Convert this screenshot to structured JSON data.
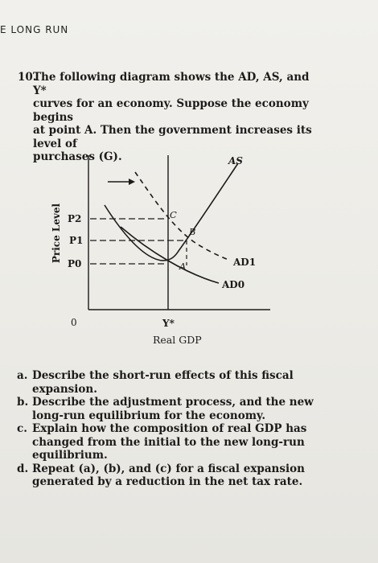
{
  "header": {
    "title": "E LONG RUN"
  },
  "question": {
    "number": "10.",
    "text_plain": "The following diagram shows the AD, AS, and Y* curves for an economy. Suppose the economy begins at point A. Then the government increases its level of purchases (G).",
    "line1": "The following diagram shows the AD, AS, and Y*",
    "line2": "curves for an economy. Suppose the economy begins",
    "line3": "at point A. Then the government increases its level of",
    "line4": "purchases (G)."
  },
  "diagram": {
    "y_axis_label": "Price Level",
    "x_axis_label": "Real GDP",
    "origin_label": "0",
    "y_star_label": "Y*",
    "price_labels": [
      "P2",
      "P1",
      "P0"
    ],
    "curve_labels": {
      "as": "AS",
      "ad1": "AD1",
      "ad0": "AD0"
    },
    "point_labels": {
      "a": "A",
      "b": "B",
      "c": "C"
    }
  },
  "parts": [
    {
      "label": "a.",
      "text": "Describe the short-run effects of this fiscal expansion."
    },
    {
      "label": "b.",
      "text": "Describe the adjustment process, and the new long-run equilibrium for the economy."
    },
    {
      "label": "c.",
      "text": "Explain how the composition of real GDP has changed from the initial to the new long-run equilibrium."
    },
    {
      "label": "d.",
      "text": "Repeat (a), (b), and (c) for a fiscal expansion generated by a reduction in the net tax rate."
    }
  ]
}
